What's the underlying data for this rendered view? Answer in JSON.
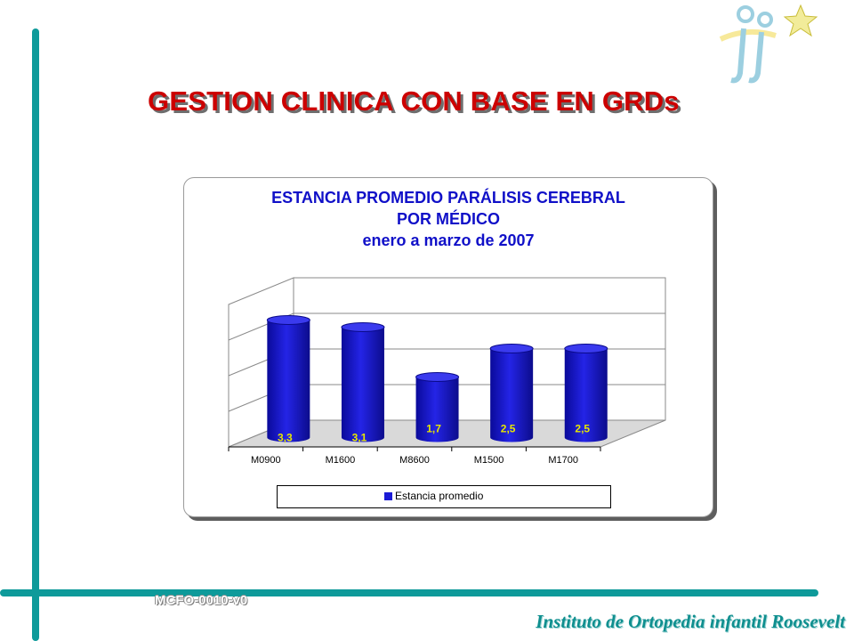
{
  "slide": {
    "title": "GESTION CLINICA  CON BASE EN GRDs",
    "footer_code": "MCFO-0010-v0",
    "institute": "Instituto de Ortopedia infantil Roosevelt"
  },
  "colors": {
    "teal": "#0e9a9a",
    "title_red": "#cc0000",
    "chart_title_blue": "#1010c8",
    "bar_blue": "#1a1ad6"
  },
  "icons": [
    "figure-star-logo-icon"
  ],
  "chart_data": {
    "type": "bar",
    "title_lines": [
      "ESTANCIA PROMEDIO PARÁLISIS CEREBRAL",
      "POR MÉDICO",
      "enero a marzo de 2007"
    ],
    "categories": [
      "M0900",
      "M1600",
      "M8600",
      "M1500",
      "M1700"
    ],
    "series": [
      {
        "name": "Estancia promedio",
        "values": [
          3.3,
          3.1,
          1.7,
          2.5,
          2.5
        ],
        "labels": [
          "3,3",
          "3,1",
          "1,7",
          "2,5",
          "2,5"
        ]
      }
    ],
    "ylim": [
      0,
      4
    ],
    "grid": true,
    "legend": "bottom",
    "style": "3d-cylinder"
  }
}
